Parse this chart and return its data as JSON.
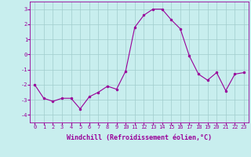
{
  "x": [
    0,
    1,
    2,
    3,
    4,
    5,
    6,
    7,
    8,
    9,
    10,
    11,
    12,
    13,
    14,
    15,
    16,
    17,
    18,
    19,
    20,
    21,
    22,
    23
  ],
  "y": [
    -2.0,
    -2.9,
    -3.1,
    -2.9,
    -2.9,
    -3.6,
    -2.8,
    -2.5,
    -2.1,
    -2.3,
    -1.1,
    1.8,
    2.6,
    3.0,
    3.0,
    2.3,
    1.7,
    -0.1,
    -1.3,
    -1.7,
    -1.2,
    -2.4,
    -1.3,
    -1.2
  ],
  "line_color": "#990099",
  "marker_color": "#990099",
  "bg_color": "#c8eeee",
  "grid_color": "#a0cccc",
  "xlabel": "Windchill (Refroidissement éolien,°C)",
  "xlabel_color": "#990099",
  "ylim": [
    -4.5,
    3.5
  ],
  "yticks": [
    -4,
    -3,
    -2,
    -1,
    0,
    1,
    2,
    3
  ],
  "xticks": [
    0,
    1,
    2,
    3,
    4,
    5,
    6,
    7,
    8,
    9,
    10,
    11,
    12,
    13,
    14,
    15,
    16,
    17,
    18,
    19,
    20,
    21,
    22,
    23
  ],
  "tick_font_size": 5.0,
  "xlabel_font_size": 6.0
}
